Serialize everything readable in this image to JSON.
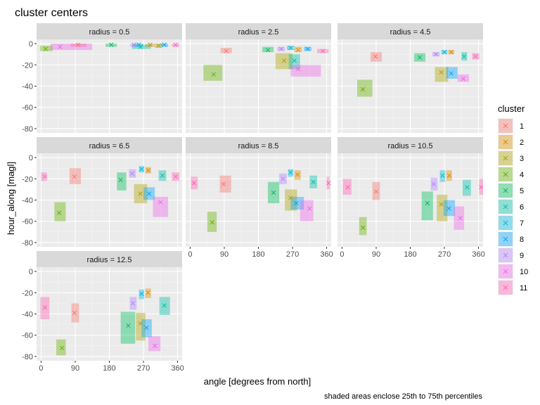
{
  "chart_data": {
    "type": "scatter",
    "title": "cluster centers",
    "xlabel": "angle [degrees from north]",
    "ylabel": "hour_along [magl]",
    "caption": "shaded areas enclose 25th to 75th percentiles",
    "facet_prefix": "radius = ",
    "xlim": [
      -12,
      372
    ],
    "ylim": [
      -84,
      4
    ],
    "x_ticks": [
      0,
      90,
      180,
      270,
      360
    ],
    "y_ticks": [
      0,
      -20,
      -40,
      -60,
      -80
    ],
    "grid": true,
    "legend": {
      "title": "cluster",
      "position": "right",
      "entries": [
        "1",
        "2",
        "3",
        "4",
        "5",
        "6",
        "7",
        "8",
        "9",
        "10",
        "11"
      ],
      "colors": [
        "#F8766D",
        "#DB8E00",
        "#AEA200",
        "#64B200",
        "#00BD5C",
        "#00C1A7",
        "#00BADE",
        "#00A6FF",
        "#B385FF",
        "#EF67EB",
        "#FF63B6"
      ]
    },
    "facets": [
      {
        "radius": "0.5",
        "points": [
          {
            "c": 1,
            "x": 98,
            "y": -1,
            "x1": 78,
            "x2": 120,
            "y1": -3,
            "y2": 0
          },
          {
            "c": 2,
            "x": 288,
            "y": -1,
            "x1": 275,
            "x2": 300,
            "y1": -3,
            "y2": 0
          },
          {
            "c": 3,
            "x": 310,
            "y": -2,
            "x1": 300,
            "x2": 320,
            "y1": -4,
            "y2": 0
          },
          {
            "c": 4,
            "x": 12,
            "y": -5,
            "x1": -3,
            "x2": 30,
            "y1": -7,
            "y2": -2
          },
          {
            "c": 5,
            "x": 185,
            "y": -1,
            "x1": 170,
            "x2": 200,
            "y1": -3,
            "y2": 0
          },
          {
            "c": 6,
            "x": 262,
            "y": -3,
            "x1": 240,
            "x2": 290,
            "y1": -5,
            "y2": -1
          },
          {
            "c": 7,
            "x": 258,
            "y": -1,
            "x1": 245,
            "x2": 270,
            "y1": -3,
            "y2": 0
          },
          {
            "c": 8,
            "x": 325,
            "y": -1,
            "x1": 315,
            "x2": 335,
            "y1": -3,
            "y2": 0
          },
          {
            "c": 9,
            "x": 245,
            "y": -1,
            "x1": 235,
            "x2": 255,
            "y1": -3,
            "y2": 0
          },
          {
            "c": 10,
            "x": 50,
            "y": -3,
            "x1": 25,
            "x2": 135,
            "y1": -6,
            "y2": 0
          },
          {
            "c": 11,
            "x": 355,
            "y": -1,
            "x1": 345,
            "x2": 365,
            "y1": -3,
            "y2": 0
          }
        ]
      },
      {
        "radius": "2.5",
        "points": [
          {
            "c": 1,
            "x": 95,
            "y": -7,
            "x1": 80,
            "x2": 110,
            "y1": -9,
            "y2": -4
          },
          {
            "c": 2,
            "x": 285,
            "y": -6,
            "x1": 275,
            "x2": 295,
            "y1": -8,
            "y2": -3
          },
          {
            "c": 3,
            "x": 248,
            "y": -16,
            "x1": 225,
            "x2": 270,
            "y1": -24,
            "y2": -9
          },
          {
            "c": 4,
            "x": 62,
            "y": -29,
            "x1": 35,
            "x2": 85,
            "y1": -35,
            "y2": -20
          },
          {
            "c": 5,
            "x": 205,
            "y": -6,
            "x1": 190,
            "x2": 220,
            "y1": -8,
            "y2": -3
          },
          {
            "c": 6,
            "x": 275,
            "y": -16,
            "x1": 260,
            "x2": 290,
            "y1": -24,
            "y2": -10
          },
          {
            "c": 7,
            "x": 265,
            "y": -4,
            "x1": 255,
            "x2": 275,
            "y1": -6,
            "y2": -2
          },
          {
            "c": 8,
            "x": 310,
            "y": -5,
            "x1": 300,
            "x2": 320,
            "y1": -7,
            "y2": -3
          },
          {
            "c": 9,
            "x": 240,
            "y": -5,
            "x1": 230,
            "x2": 250,
            "y1": -7,
            "y2": -3
          },
          {
            "c": 10,
            "x": 285,
            "y": -24,
            "x1": 265,
            "x2": 345,
            "y1": -31,
            "y2": -20
          },
          {
            "c": 11,
            "x": 350,
            "y": -7,
            "x1": 335,
            "x2": 365,
            "y1": -9,
            "y2": -5
          }
        ]
      },
      {
        "radius": "4.5",
        "points": [
          {
            "c": 1,
            "x": 88,
            "y": -12,
            "x1": 75,
            "x2": 105,
            "y1": -17,
            "y2": -8
          },
          {
            "c": 2,
            "x": 288,
            "y": -8,
            "x1": 280,
            "x2": 296,
            "y1": -10,
            "y2": -6
          },
          {
            "c": 3,
            "x": 262,
            "y": -27,
            "x1": 245,
            "x2": 280,
            "y1": -36,
            "y2": -22
          },
          {
            "c": 4,
            "x": 55,
            "y": -43,
            "x1": 40,
            "x2": 80,
            "y1": -50,
            "y2": -34
          },
          {
            "c": 5,
            "x": 205,
            "y": -13,
            "x1": 190,
            "x2": 220,
            "y1": -17,
            "y2": -9
          },
          {
            "c": 6,
            "x": 322,
            "y": -12,
            "x1": 315,
            "x2": 330,
            "y1": -16,
            "y2": -8
          },
          {
            "c": 7,
            "x": 270,
            "y": -8,
            "x1": 262,
            "x2": 278,
            "y1": -10,
            "y2": -6
          },
          {
            "c": 8,
            "x": 288,
            "y": -28,
            "x1": 275,
            "x2": 305,
            "y1": -33,
            "y2": -22
          },
          {
            "c": 9,
            "x": 248,
            "y": -10,
            "x1": 238,
            "x2": 258,
            "y1": -12,
            "y2": -8
          },
          {
            "c": 10,
            "x": 320,
            "y": -33,
            "x1": 305,
            "x2": 335,
            "y1": -36,
            "y2": -29
          },
          {
            "c": 11,
            "x": 352,
            "y": -12,
            "x1": 343,
            "x2": 362,
            "y1": -15,
            "y2": -9
          }
        ]
      },
      {
        "radius": "6.5",
        "points": [
          {
            "c": 1,
            "x": 88,
            "y": -18,
            "x1": 75,
            "x2": 105,
            "y1": -25,
            "y2": -10
          },
          {
            "c": 2,
            "x": 283,
            "y": -12,
            "x1": 275,
            "x2": 290,
            "y1": -15,
            "y2": -9
          },
          {
            "c": 3,
            "x": 262,
            "y": -34,
            "x1": 245,
            "x2": 280,
            "y1": -43,
            "y2": -25
          },
          {
            "c": 4,
            "x": 48,
            "y": -52,
            "x1": 35,
            "x2": 65,
            "y1": -60,
            "y2": -42
          },
          {
            "c": 5,
            "x": 210,
            "y": -21,
            "x1": 200,
            "x2": 225,
            "y1": -31,
            "y2": -14
          },
          {
            "c": 6,
            "x": 320,
            "y": -17,
            "x1": 310,
            "x2": 330,
            "y1": -22,
            "y2": -12
          },
          {
            "c": 7,
            "x": 265,
            "y": -11,
            "x1": 258,
            "x2": 272,
            "y1": -14,
            "y2": -8
          },
          {
            "c": 8,
            "x": 285,
            "y": -34,
            "x1": 270,
            "x2": 300,
            "y1": -40,
            "y2": -28
          },
          {
            "c": 9,
            "x": 240,
            "y": -15,
            "x1": 232,
            "x2": 250,
            "y1": -19,
            "y2": -11
          },
          {
            "c": 10,
            "x": 315,
            "y": -42,
            "x1": 295,
            "x2": 335,
            "y1": -56,
            "y2": -37
          },
          {
            "c": 11,
            "x": 355,
            "y": -18,
            "x1": 345,
            "x2": 365,
            "y1": -22,
            "y2": -14
          },
          {
            "c": 11,
            "x": 10,
            "y": -18,
            "x1": 0,
            "x2": 15,
            "y1": -22,
            "y2": -14
          }
        ]
      },
      {
        "radius": "8.5",
        "points": [
          {
            "c": 1,
            "x": 88,
            "y": -25,
            "x1": 78,
            "x2": 108,
            "y1": -33,
            "y2": -17
          },
          {
            "c": 2,
            "x": 283,
            "y": -16,
            "x1": 275,
            "x2": 292,
            "y1": -21,
            "y2": -12
          },
          {
            "c": 3,
            "x": 265,
            "y": -38,
            "x1": 250,
            "x2": 282,
            "y1": -50,
            "y2": -30
          },
          {
            "c": 4,
            "x": 58,
            "y": -61,
            "x1": 45,
            "x2": 70,
            "y1": -70,
            "y2": -51
          },
          {
            "c": 5,
            "x": 220,
            "y": -33,
            "x1": 205,
            "x2": 235,
            "y1": -43,
            "y2": -23
          },
          {
            "c": 6,
            "x": 325,
            "y": -23,
            "x1": 315,
            "x2": 335,
            "y1": -29,
            "y2": -17
          },
          {
            "c": 7,
            "x": 265,
            "y": -14,
            "x1": 258,
            "x2": 272,
            "y1": -18,
            "y2": -11
          },
          {
            "c": 8,
            "x": 280,
            "y": -43,
            "x1": 265,
            "x2": 300,
            "y1": -49,
            "y2": -37
          },
          {
            "c": 9,
            "x": 245,
            "y": -20,
            "x1": 235,
            "x2": 255,
            "y1": -25,
            "y2": -15
          },
          {
            "c": 10,
            "x": 315,
            "y": -48,
            "x1": 290,
            "x2": 325,
            "y1": -60,
            "y2": -40
          },
          {
            "c": 11,
            "x": 10,
            "y": -24,
            "x1": 2,
            "x2": 20,
            "y1": -30,
            "y2": -18
          },
          {
            "c": 11,
            "x": 365,
            "y": -24,
            "x1": 360,
            "x2": 368,
            "y1": -30,
            "y2": -18
          }
        ]
      },
      {
        "radius": "10.5",
        "points": [
          {
            "c": 1,
            "x": 90,
            "y": -32,
            "x1": 80,
            "x2": 100,
            "y1": -40,
            "y2": -23
          },
          {
            "c": 2,
            "x": 283,
            "y": -17,
            "x1": 275,
            "x2": 290,
            "y1": -22,
            "y2": -12
          },
          {
            "c": 3,
            "x": 262,
            "y": -44,
            "x1": 250,
            "x2": 278,
            "y1": -60,
            "y2": -35
          },
          {
            "c": 4,
            "x": 55,
            "y": -66,
            "x1": 45,
            "x2": 65,
            "y1": -73,
            "y2": -56
          },
          {
            "c": 5,
            "x": 225,
            "y": -43,
            "x1": 210,
            "x2": 240,
            "y1": -59,
            "y2": -32
          },
          {
            "c": 6,
            "x": 330,
            "y": -28,
            "x1": 318,
            "x2": 340,
            "y1": -36,
            "y2": -21
          },
          {
            "c": 7,
            "x": 265,
            "y": -17,
            "x1": 258,
            "x2": 272,
            "y1": -23,
            "y2": -12
          },
          {
            "c": 8,
            "x": 282,
            "y": -48,
            "x1": 268,
            "x2": 298,
            "y1": -55,
            "y2": -40
          },
          {
            "c": 9,
            "x": 242,
            "y": -25,
            "x1": 234,
            "x2": 252,
            "y1": -31,
            "y2": -19
          },
          {
            "c": 10,
            "x": 312,
            "y": -57,
            "x1": 295,
            "x2": 322,
            "y1": -68,
            "y2": -46
          },
          {
            "c": 11,
            "x": 15,
            "y": -28,
            "x1": 2,
            "x2": 25,
            "y1": -35,
            "y2": -20
          },
          {
            "c": 11,
            "x": 367,
            "y": -28,
            "x1": 362,
            "x2": 372,
            "y1": -35,
            "y2": -20
          }
        ]
      },
      {
        "radius": "12.5",
        "points": [
          {
            "c": 1,
            "x": 88,
            "y": -39,
            "x1": 80,
            "x2": 100,
            "y1": -48,
            "y2": -30
          },
          {
            "c": 2,
            "x": 282,
            "y": -20,
            "x1": 275,
            "x2": 290,
            "y1": -25,
            "y2": -16
          },
          {
            "c": 3,
            "x": 262,
            "y": -49,
            "x1": 250,
            "x2": 275,
            "y1": -65,
            "y2": -39
          },
          {
            "c": 4,
            "x": 55,
            "y": -72,
            "x1": 40,
            "x2": 65,
            "y1": -79,
            "y2": -64
          },
          {
            "c": 5,
            "x": 230,
            "y": -51,
            "x1": 210,
            "x2": 248,
            "y1": -68,
            "y2": -38
          },
          {
            "c": 6,
            "x": 325,
            "y": -32,
            "x1": 312,
            "x2": 340,
            "y1": -41,
            "y2": -24
          },
          {
            "c": 7,
            "x": 265,
            "y": -21,
            "x1": 258,
            "x2": 272,
            "y1": -26,
            "y2": -17
          },
          {
            "c": 8,
            "x": 278,
            "y": -53,
            "x1": 265,
            "x2": 292,
            "y1": -62,
            "y2": -45
          },
          {
            "c": 9,
            "x": 242,
            "y": -30,
            "x1": 234,
            "x2": 252,
            "y1": -36,
            "y2": -24
          },
          {
            "c": 10,
            "x": 300,
            "y": -70,
            "x1": 283,
            "x2": 315,
            "y1": -75,
            "y2": -61
          },
          {
            "c": 11,
            "x": 10,
            "y": -34,
            "x1": -2,
            "x2": 22,
            "y1": -45,
            "y2": -24
          }
        ]
      }
    ]
  }
}
